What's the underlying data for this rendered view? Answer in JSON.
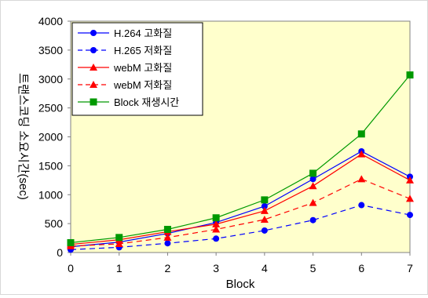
{
  "chart_data": {
    "type": "line",
    "x": [
      0,
      1,
      2,
      3,
      4,
      5,
      6,
      7
    ],
    "xlabel": "Block",
    "ylabel": "트랜스코딩 소요시간(sec)",
    "xlim": [
      0,
      7
    ],
    "ylim": [
      0,
      4000
    ],
    "yticks": [
      0,
      500,
      1000,
      1500,
      2000,
      2500,
      3000,
      3500,
      4000
    ],
    "grid": false,
    "legend_position": "top-left",
    "plot_background": "#ffffcc",
    "series": [
      {
        "name": "H.264 고화질",
        "color": "#0000ff",
        "dash": "solid",
        "marker": "circle",
        "values": [
          100,
          180,
          330,
          520,
          800,
          1270,
          1750,
          1310
        ]
      },
      {
        "name": "H.265 저화질",
        "color": "#0000ff",
        "dash": "dashed",
        "marker": "circle",
        "values": [
          50,
          90,
          160,
          240,
          380,
          560,
          820,
          650
        ]
      },
      {
        "name": "webM 고화질",
        "color": "#ff0000",
        "dash": "solid",
        "marker": "triangle",
        "values": [
          140,
          220,
          360,
          490,
          720,
          1150,
          1700,
          1250
        ]
      },
      {
        "name": "webM 저화질",
        "color": "#ff0000",
        "dash": "dashed",
        "marker": "triangle",
        "values": [
          110,
          150,
          260,
          400,
          570,
          860,
          1270,
          930
        ]
      },
      {
        "name": "Block 재생시간",
        "color": "#009900",
        "dash": "solid",
        "marker": "square",
        "values": [
          170,
          260,
          400,
          600,
          910,
          1370,
          2050,
          3070
        ]
      }
    ]
  }
}
